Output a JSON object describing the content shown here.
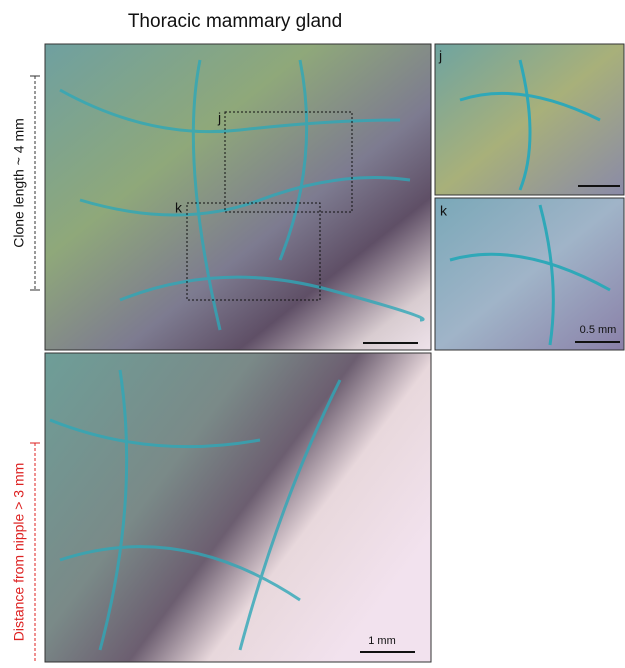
{
  "title": "Thoracic mammary gland",
  "side_labels": {
    "clone_length": "Clone length ~ 4 mm",
    "distance": "Distance from nipple > 3 mm"
  },
  "main_panel": {
    "box_labels": [
      "j",
      "k"
    ]
  },
  "insets": [
    {
      "label": "j"
    },
    {
      "label": "k",
      "scale": "0.5 mm"
    }
  ],
  "bottom_panel": {
    "scale": "1 mm"
  }
}
